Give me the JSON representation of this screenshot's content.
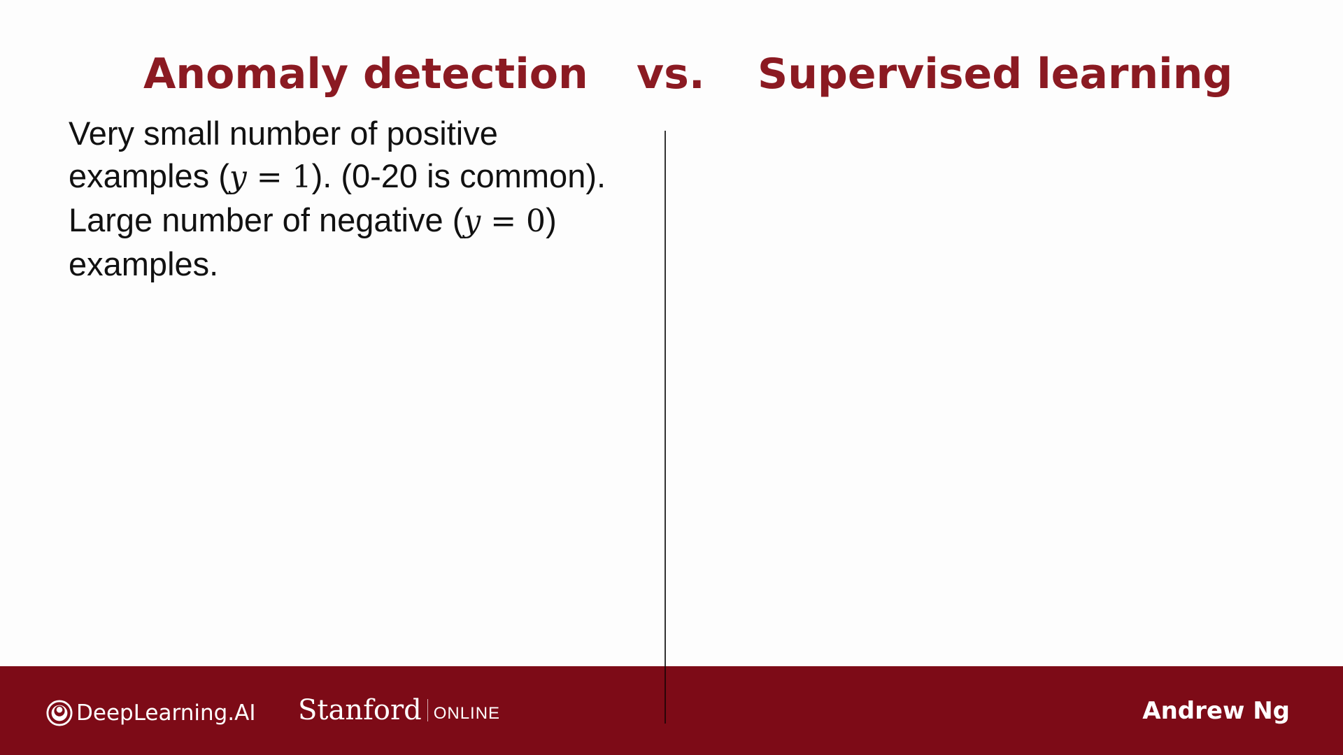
{
  "title": {
    "left": "Anomaly detection",
    "vs": "vs.",
    "right": "Supervised learning"
  },
  "left_column": {
    "line1": "Very small number of positive",
    "line2_pre": "examples (",
    "line2_var": "y",
    "line2_eq": " = 1",
    "line2_post": "). (0-20 is common).",
    "line3_pre": "Large number of negative (",
    "line3_var": "y",
    "line3_eq": " = 0",
    "line3_post": ")",
    "line4": "examples."
  },
  "right_column": {
    "items": []
  },
  "footer": {
    "logo_deeplearning": "DeepLearning.AI",
    "logo_stanford": "Stanford",
    "logo_online": "ONLINE",
    "author": "Andrew Ng"
  },
  "colors": {
    "title": "#8b1a22",
    "footer_bg": "#7d0b17",
    "background": "#fdfdfd"
  }
}
